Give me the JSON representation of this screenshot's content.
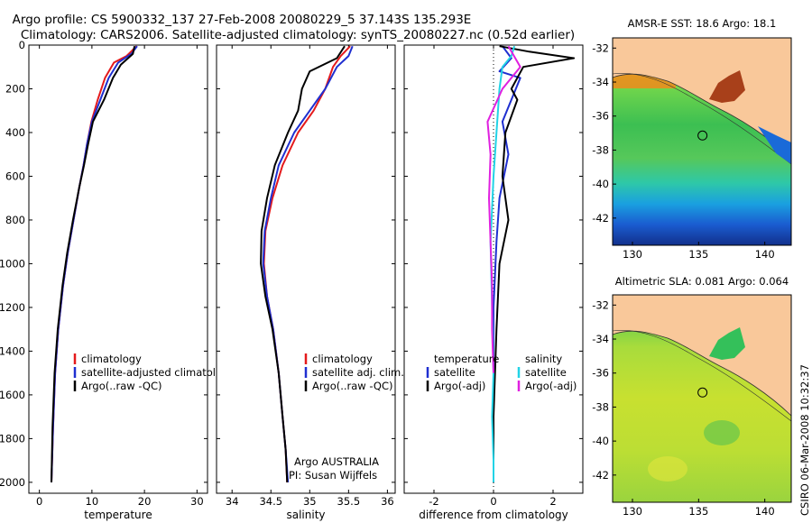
{
  "header": {
    "line1": "Argo profile: CS 5900332_137 27-Feb-2008 20080229_5 37.143S 135.293E",
    "line2": "Climatology: CARS2006. Satellite-adjusted climatology: synTS_20080227.nc (0.52d earlier)"
  },
  "colors": {
    "climatology": "#e41a1c",
    "satellite": "#1f2fd0",
    "argo": "#000000",
    "salinity_satellite": "#22d3e6",
    "salinity_argo": "#e020e0",
    "land": "#f9c89a",
    "ocean_deep": "#12308c",
    "ocean_mid": "#3cbc4c",
    "ocean_warm": "#e0c020",
    "ocean_hot": "#a8401a"
  },
  "chart_data": [
    {
      "type": "line",
      "id": "temperature",
      "xlabel": "temperature",
      "xlim": [
        -2,
        32
      ],
      "ylim": [
        2050,
        0
      ],
      "xticks": [
        0,
        10,
        20,
        30
      ],
      "yticks": [
        0,
        200,
        400,
        600,
        800,
        1000,
        1200,
        1400,
        1600,
        1800,
        2000
      ],
      "series": [
        {
          "name": "climatology",
          "color": "climatology",
          "x": [
            18.5,
            16.6,
            14.2,
            12.5,
            11.1,
            9.9,
            9.1,
            8.4,
            7.6,
            6.5,
            5.4,
            4.5,
            3.6,
            3.0,
            2.6,
            2.3
          ],
          "y": [
            5,
            50,
            80,
            150,
            250,
            350,
            450,
            550,
            650,
            800,
            950,
            1100,
            1300,
            1500,
            1750,
            2000
          ]
        },
        {
          "name": "satellite-adjusted climatology",
          "color": "satellite",
          "x": [
            18.6,
            17.5,
            15.0,
            13.2,
            11.6,
            10.0,
            9.1,
            8.4,
            7.6,
            6.5,
            5.4,
            4.5,
            3.6,
            3.0,
            2.6,
            2.3
          ],
          "y": [
            5,
            40,
            80,
            150,
            250,
            350,
            450,
            550,
            650,
            800,
            950,
            1100,
            1300,
            1500,
            1750,
            2000
          ]
        },
        {
          "name": "Argo(..raw -QC)",
          "color": "argo",
          "x": [
            18.1,
            17.8,
            15.5,
            14.0,
            12.3,
            10.2,
            9.3,
            8.5,
            7.6,
            6.4,
            5.3,
            4.4,
            3.5,
            2.9,
            2.5,
            2.3
          ],
          "y": [
            5,
            40,
            90,
            150,
            250,
            350,
            450,
            550,
            650,
            800,
            950,
            1100,
            1300,
            1500,
            1750,
            2000
          ]
        }
      ],
      "legend": [
        "climatology",
        "satellite-adjusted climatology",
        "Argo(..raw -QC)"
      ]
    },
    {
      "type": "line",
      "id": "salinity",
      "xlabel": "salinity",
      "xlim": [
        33.8,
        36.1
      ],
      "ylim": [
        2050,
        0
      ],
      "xticks": [
        34,
        34.5,
        35,
        35.5,
        36
      ],
      "series": [
        {
          "name": "climatology",
          "color": "climatology",
          "x": [
            35.52,
            35.4,
            35.3,
            35.2,
            35.05,
            34.85,
            34.65,
            34.52,
            34.43,
            34.41,
            34.45,
            34.53,
            34.6,
            34.65,
            34.69,
            34.71
          ],
          "y": [
            5,
            50,
            100,
            200,
            300,
            400,
            550,
            700,
            850,
            1000,
            1150,
            1300,
            1500,
            1700,
            1850,
            2000
          ]
        },
        {
          "name": "satellite adj. clim.",
          "color": "satellite",
          "x": [
            35.55,
            35.5,
            35.35,
            35.2,
            35.0,
            34.8,
            34.6,
            34.5,
            34.42,
            34.4,
            34.45,
            34.53,
            34.6,
            34.65,
            34.69,
            34.72
          ],
          "y": [
            5,
            50,
            100,
            200,
            300,
            400,
            550,
            700,
            850,
            1000,
            1150,
            1300,
            1500,
            1700,
            1850,
            2000
          ]
        },
        {
          "name": "Argo(..raw -QC)",
          "color": "argo",
          "x": [
            35.45,
            35.35,
            35.0,
            34.9,
            34.85,
            34.72,
            34.55,
            34.45,
            34.38,
            34.37,
            34.43,
            34.52,
            34.6,
            34.65,
            34.69,
            34.71
          ],
          "y": [
            5,
            60,
            120,
            200,
            300,
            400,
            550,
            700,
            850,
            1000,
            1150,
            1300,
            1500,
            1700,
            1850,
            2000
          ]
        }
      ],
      "legend": [
        "climatology",
        "satellite adj. clim.",
        "Argo(..raw -QC)"
      ],
      "annotation": [
        "Argo AUSTRALIA",
        "PI: Susan Wijffels"
      ]
    },
    {
      "type": "line",
      "id": "difference",
      "xlabel": "difference from climatology",
      "xlim": [
        -3,
        3
      ],
      "ylim": [
        2050,
        0
      ],
      "xticks": [
        -2,
        0,
        2
      ],
      "series": [
        {
          "name": "temperature satellite",
          "color": "satellite",
          "x": [
            0.3,
            0.6,
            0.2,
            0.9,
            0.6,
            0.3,
            0.5,
            0.2,
            0.1,
            0.0,
            0.0,
            0.0
          ],
          "y": [
            5,
            60,
            120,
            150,
            250,
            350,
            500,
            700,
            900,
            1200,
            1600,
            2000
          ]
        },
        {
          "name": "temperature Argo(-adj)",
          "color": "argo",
          "x": [
            0.2,
            1.2,
            2.7,
            1.0,
            0.6,
            0.8,
            0.4,
            0.3,
            0.5,
            0.2,
            0.1,
            0.0,
            0.0
          ],
          "y": [
            5,
            30,
            60,
            100,
            200,
            250,
            400,
            600,
            800,
            1000,
            1300,
            1700,
            2000
          ]
        },
        {
          "name": "salinity satellite",
          "color": "salinity_satellite",
          "x": [
            0.7,
            0.6,
            0.3,
            0.2,
            0.1,
            0.0,
            -0.1,
            -0.05,
            0.0,
            -0.05,
            0.0,
            0.0
          ],
          "y": [
            5,
            50,
            100,
            200,
            400,
            600,
            900,
            1200,
            1500,
            1700,
            1900,
            2000
          ]
        },
        {
          "name": "salinity Argo(-adj)",
          "color": "salinity_argo",
          "x": [
            0.5,
            0.9,
            0.3,
            -0.2,
            -0.1,
            -0.15,
            -0.1,
            -0.05,
            -0.05,
            0.0
          ],
          "y": [
            5,
            100,
            200,
            350,
            500,
            700,
            900,
            1100,
            1300,
            1500
          ]
        }
      ],
      "legend_left_title": "temperature",
      "legend_right_title": "salinity",
      "legend_left": [
        "satellite",
        "Argo(-adj)"
      ],
      "legend_right": [
        "satellite",
        "Argo(-adj)"
      ]
    },
    {
      "type": "heatmap",
      "id": "sst_map",
      "title": "AMSR-E SST: 18.6 Argo: 18.1",
      "xlim": [
        128.5,
        142
      ],
      "ylim": [
        -43.6,
        -31.4
      ],
      "xticks": [
        130,
        135,
        140
      ],
      "yticks": [
        -32,
        -34,
        -36,
        -38,
        -40,
        -42
      ],
      "float_position": {
        "lon": 135.293,
        "lat": -37.143
      }
    },
    {
      "type": "heatmap",
      "id": "sla_map",
      "title": "Altimetric SLA: 0.081 Argo: 0.064",
      "xlim": [
        128.5,
        142
      ],
      "ylim": [
        -43.6,
        -31.4
      ],
      "xticks": [
        130,
        135,
        140
      ],
      "yticks": [
        -32,
        -34,
        -36,
        -38,
        -40,
        -42
      ],
      "float_position": {
        "lon": 135.293,
        "lat": -37.143
      }
    }
  ],
  "footer": {
    "stamp": "CSIRO 06-Mar-2008 10:32:37"
  }
}
